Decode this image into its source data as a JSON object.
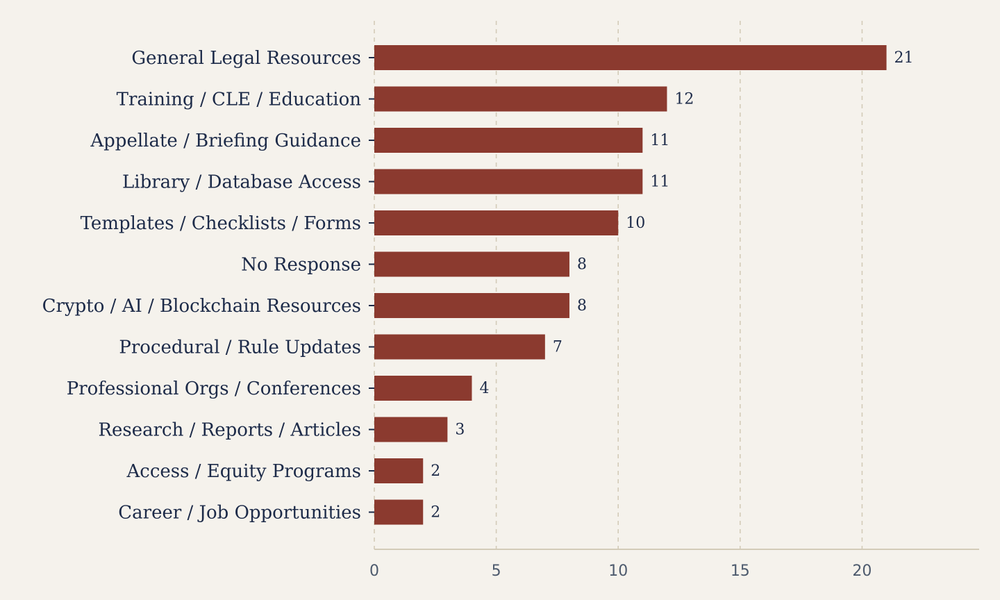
{
  "chart_data": {
    "type": "bar",
    "orientation": "horizontal",
    "categories": [
      "General Legal Resources",
      "Training / CLE / Education",
      "Appellate / Briefing Guidance",
      "Library / Database Access",
      "Templates / Checklists / Forms",
      "No Response",
      "Crypto / AI / Blockchain Resources",
      "Procedural / Rule Updates",
      "Professional Orgs / Conferences",
      "Research / Reports / Articles",
      "Access / Equity Programs",
      "Career / Job Opportunities"
    ],
    "values": [
      21,
      12,
      11,
      11,
      10,
      8,
      8,
      7,
      4,
      3,
      2,
      2
    ],
    "data_labels": [
      "21",
      "12",
      "11",
      "11",
      "10",
      "8",
      "8",
      "7",
      "4",
      "3",
      "2",
      "2"
    ],
    "xticks": [
      "0",
      "5",
      "10",
      "15",
      "20"
    ],
    "xlim": [
      0,
      24.8
    ],
    "grid": "vertical dashed",
    "title": "",
    "xlabel": "",
    "ylabel": "",
    "colors": {
      "bar": "#8b3a2f",
      "background": "#f5f2ec",
      "text": "#1c2a48",
      "tick_text": "#4d5a6d",
      "grid": "#d3cbb8"
    }
  }
}
